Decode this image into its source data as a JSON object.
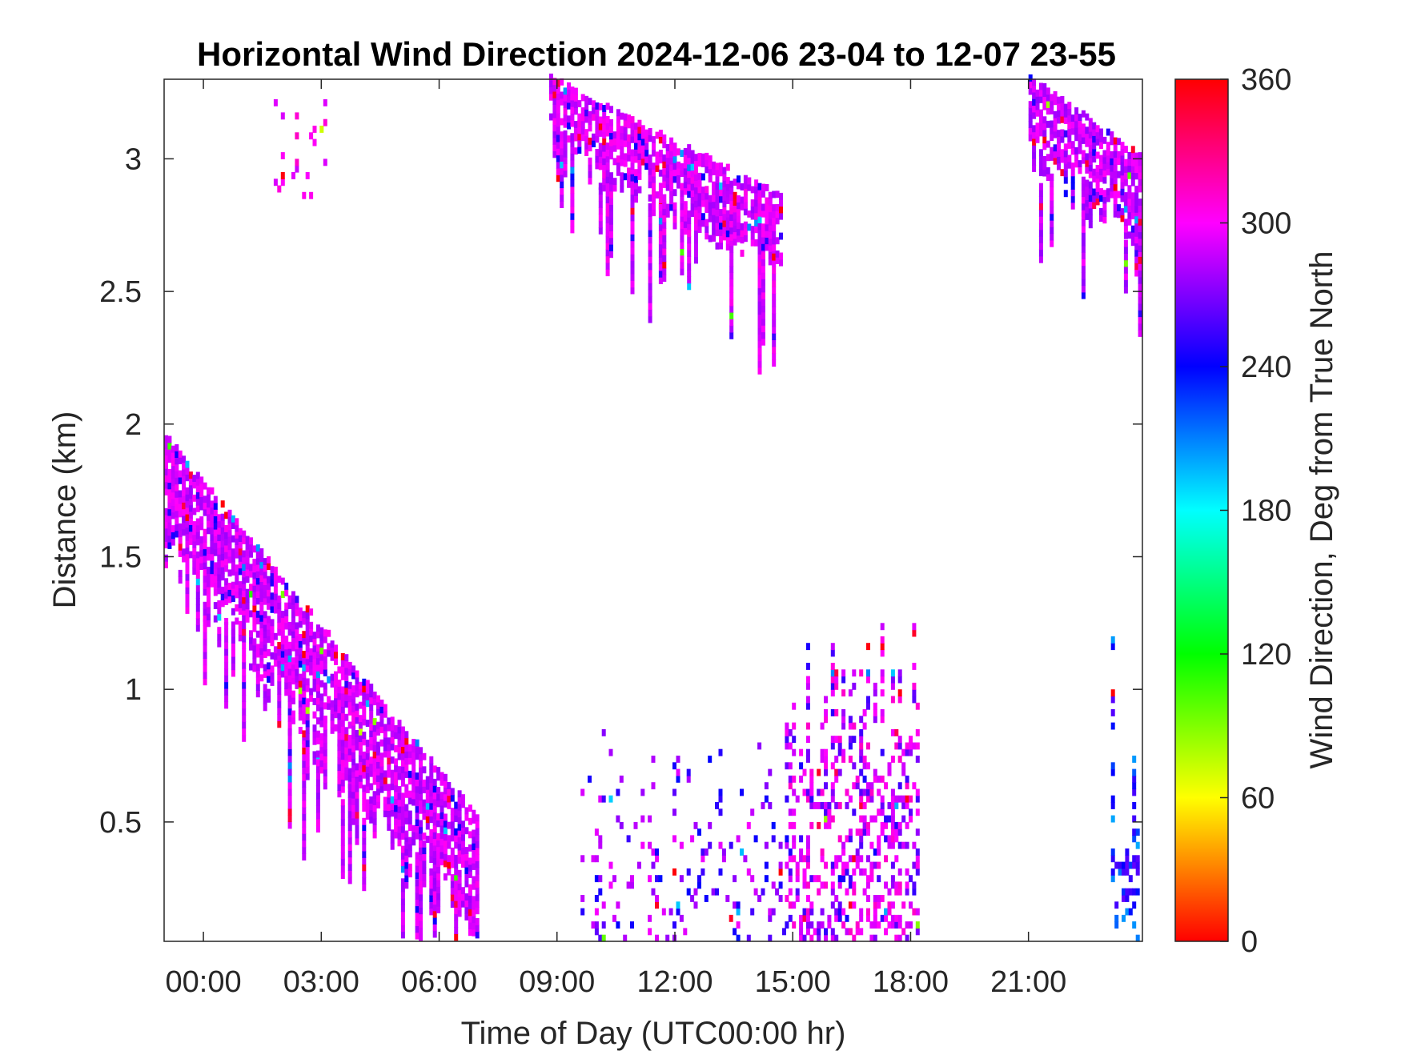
{
  "chart_data": {
    "type": "heatmap",
    "title": "Horizontal Wind Direction 2024-12-06 23-04 to 12-07 23-55",
    "xlabel": "Time of Day (UTC00:00 hr)",
    "ylabel": "Distance (km)",
    "x_units": "hours of day",
    "xlim": [
      -1.0,
      23.9
    ],
    "ylim": [
      0.05,
      3.3
    ],
    "x_ticks": [
      0,
      3,
      6,
      9,
      12,
      15,
      18,
      21
    ],
    "x_tick_labels": [
      "00:00",
      "03:00",
      "06:00",
      "09:00",
      "12:00",
      "15:00",
      "18:00",
      "21:00"
    ],
    "y_ticks": [
      0.5,
      1,
      1.5,
      2,
      2.5,
      3
    ],
    "y_tick_labels": [
      "0.5",
      "1",
      "1.5",
      "2",
      "2.5",
      "3"
    ],
    "grid": false,
    "colorbar": {
      "label": "Wind Direction, Deg from True North",
      "range": [
        0,
        360
      ],
      "ticks": [
        0,
        60,
        120,
        180,
        240,
        300,
        360
      ],
      "tick_labels": [
        "0",
        "60",
        "120",
        "180",
        "240",
        "300",
        "360"
      ],
      "colormap": [
        "#ff0000",
        "#ffff00",
        "#00ff00",
        "#00ffff",
        "#0000ff",
        "#ff00ff",
        "#ff0000"
      ]
    },
    "point_value_units": "degrees from true north",
    "regions": [
      {
        "name": "descending-band-night",
        "x_start": -1.0,
        "x_end": 7.0,
        "y_top_start": 1.95,
        "y_bottom_end": 0.05,
        "thickness_km": 0.45,
        "direction_deg": 290
      },
      {
        "name": "descending-band-upper",
        "x_start": 8.8,
        "x_end": 14.7,
        "y_top_start": 3.3,
        "y_bottom_end": 2.6,
        "thickness_km": 0.25,
        "direction_deg": 292
      },
      {
        "name": "upper-cluster-early",
        "x_start": 1.7,
        "x_end": 3.1,
        "y_bottom": 2.85,
        "y_top": 3.3,
        "direction_deg": 300
      },
      {
        "name": "upper-band-late",
        "x_start": 21.0,
        "x_end": 23.9,
        "y_top_start": 3.3,
        "y_bottom_end": 2.7,
        "thickness_km": 0.3,
        "direction_deg": 288
      },
      {
        "name": "afternoon-convective",
        "x_start": 14.8,
        "x_end": 18.2,
        "y_bottom": 0.05,
        "y_top": 1.3,
        "direction_deg": 300
      },
      {
        "name": "midday-scatter",
        "x_start": 9.6,
        "x_end": 14.8,
        "y_bottom": 0.05,
        "y_top": 0.85,
        "direction_deg": 285
      },
      {
        "name": "late-low-column",
        "x_start": 23.1,
        "x_end": 23.9,
        "y_bottom": 0.05,
        "y_top": 1.3,
        "direction_deg": 250
      }
    ]
  }
}
